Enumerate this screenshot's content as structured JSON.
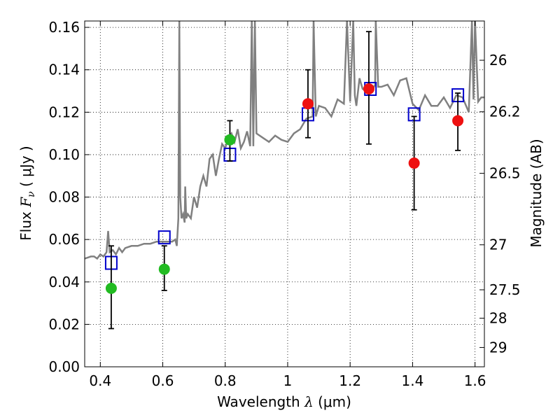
{
  "chart_data": {
    "type": "scatter",
    "xlabel": "Wavelength  λ (μm)",
    "xlabel_parts": {
      "text": "Wavelength  ",
      "symbol": "λ",
      "unit": " (μm)"
    },
    "ylabel": "Flux  Fν  ( μJy )",
    "ylabel_parts": {
      "text": "Flux  ",
      "symbol": "F",
      "sub": "ν",
      "unit": "  ( μJy )"
    },
    "y2label": "Magnitude (AB)",
    "xlim": [
      0.35,
      1.63
    ],
    "ylim": [
      0.0,
      0.163
    ],
    "grid": true,
    "xticks": [
      0.4,
      0.6,
      0.8,
      1.0,
      1.2,
      1.4,
      1.6
    ],
    "xtick_labels": [
      "0.4",
      "0.6",
      "0.8",
      "1",
      "1.2",
      "1.4",
      "1.6"
    ],
    "yticks": [
      0.0,
      0.02,
      0.04,
      0.06,
      0.08,
      0.1,
      0.12,
      0.14,
      0.16
    ],
    "ytick_labels": [
      "0.00",
      "0.02",
      "0.04",
      "0.06",
      "0.08",
      "0.10",
      "0.12",
      "0.14",
      "0.16"
    ],
    "y2ticks": [
      {
        "label": "26",
        "flux": 0.1445
      },
      {
        "label": "26.2",
        "flux": 0.1202
      },
      {
        "label": "26.5",
        "flux": 0.0912
      },
      {
        "label": "27",
        "flux": 0.0575
      },
      {
        "label": "27.5",
        "flux": 0.0363
      },
      {
        "label": "28",
        "flux": 0.0229
      },
      {
        "label": "29",
        "flux": 0.0091
      }
    ],
    "series": [
      {
        "kind": "line",
        "color": "#808080",
        "x": [
          0.35,
          0.37,
          0.38,
          0.39,
          0.4,
          0.41,
          0.42,
          0.425,
          0.43,
          0.44,
          0.45,
          0.46,
          0.47,
          0.48,
          0.5,
          0.52,
          0.54,
          0.56,
          0.58,
          0.6,
          0.62,
          0.63,
          0.64,
          0.645,
          0.65,
          0.653,
          0.656,
          0.66,
          0.665,
          0.67,
          0.672,
          0.675,
          0.68,
          0.69,
          0.7,
          0.71,
          0.72,
          0.73,
          0.74,
          0.75,
          0.76,
          0.77,
          0.78,
          0.79,
          0.8,
          0.81,
          0.82,
          0.83,
          0.84,
          0.85,
          0.86,
          0.87,
          0.88,
          0.885,
          0.89,
          0.895,
          0.9,
          0.92,
          0.94,
          0.96,
          0.98,
          1.0,
          1.02,
          1.04,
          1.06,
          1.08,
          1.083,
          1.09,
          1.1,
          1.12,
          1.14,
          1.16,
          1.18,
          1.19,
          1.2,
          1.21,
          1.215,
          1.22,
          1.23,
          1.24,
          1.25,
          1.26,
          1.27,
          1.28,
          1.282,
          1.29,
          1.3,
          1.32,
          1.34,
          1.36,
          1.38,
          1.4,
          1.42,
          1.44,
          1.46,
          1.48,
          1.5,
          1.52,
          1.54,
          1.56,
          1.58,
          1.59,
          1.595,
          1.6,
          1.61,
          1.62,
          1.63
        ],
        "y": [
          0.051,
          0.052,
          0.052,
          0.051,
          0.053,
          0.052,
          0.054,
          0.064,
          0.054,
          0.055,
          0.053,
          0.056,
          0.054,
          0.056,
          0.057,
          0.057,
          0.058,
          0.058,
          0.059,
          0.059,
          0.059,
          0.059,
          0.06,
          0.057,
          0.07,
          0.163,
          0.08,
          0.07,
          0.072,
          0.068,
          0.085,
          0.07,
          0.072,
          0.07,
          0.08,
          0.075,
          0.085,
          0.09,
          0.085,
          0.098,
          0.1,
          0.09,
          0.098,
          0.105,
          0.103,
          0.108,
          0.11,
          0.106,
          0.112,
          0.103,
          0.106,
          0.111,
          0.104,
          0.163,
          0.104,
          0.163,
          0.11,
          0.108,
          0.106,
          0.109,
          0.107,
          0.106,
          0.11,
          0.112,
          0.117,
          0.118,
          0.163,
          0.118,
          0.123,
          0.122,
          0.118,
          0.126,
          0.124,
          0.163,
          0.125,
          0.163,
          0.128,
          0.123,
          0.136,
          0.131,
          0.13,
          0.129,
          0.13,
          0.133,
          0.163,
          0.132,
          0.132,
          0.133,
          0.128,
          0.135,
          0.136,
          0.124,
          0.121,
          0.128,
          0.123,
          0.123,
          0.127,
          0.122,
          0.128,
          0.127,
          0.12,
          0.163,
          0.126,
          0.163,
          0.125,
          0.127,
          0.127
        ]
      },
      {
        "kind": "points",
        "marker": "open-square",
        "color": "#0000cc",
        "x": [
          0.435,
          0.605,
          0.815,
          1.065,
          1.265,
          1.405,
          1.545
        ],
        "y": [
          0.049,
          0.061,
          0.1,
          0.119,
          0.131,
          0.119,
          0.128
        ]
      },
      {
        "kind": "points",
        "marker": "filled-circle",
        "color": "#22bb22",
        "x": [
          0.435,
          0.605,
          0.815
        ],
        "y": [
          0.037,
          0.046,
          0.107
        ],
        "yerr_low": [
          0.018,
          0.036,
          0.097
        ],
        "yerr_high": [
          0.057,
          0.057,
          0.116
        ]
      },
      {
        "kind": "points",
        "marker": "filled-circle",
        "color": "#ee1111",
        "x": [
          1.065,
          1.26,
          1.405,
          1.545
        ],
        "y": [
          0.124,
          0.131,
          0.096,
          0.116
        ],
        "yerr_low": [
          0.108,
          0.105,
          0.074,
          0.102
        ],
        "yerr_high": [
          0.14,
          0.158,
          0.118,
          0.129
        ]
      }
    ]
  }
}
